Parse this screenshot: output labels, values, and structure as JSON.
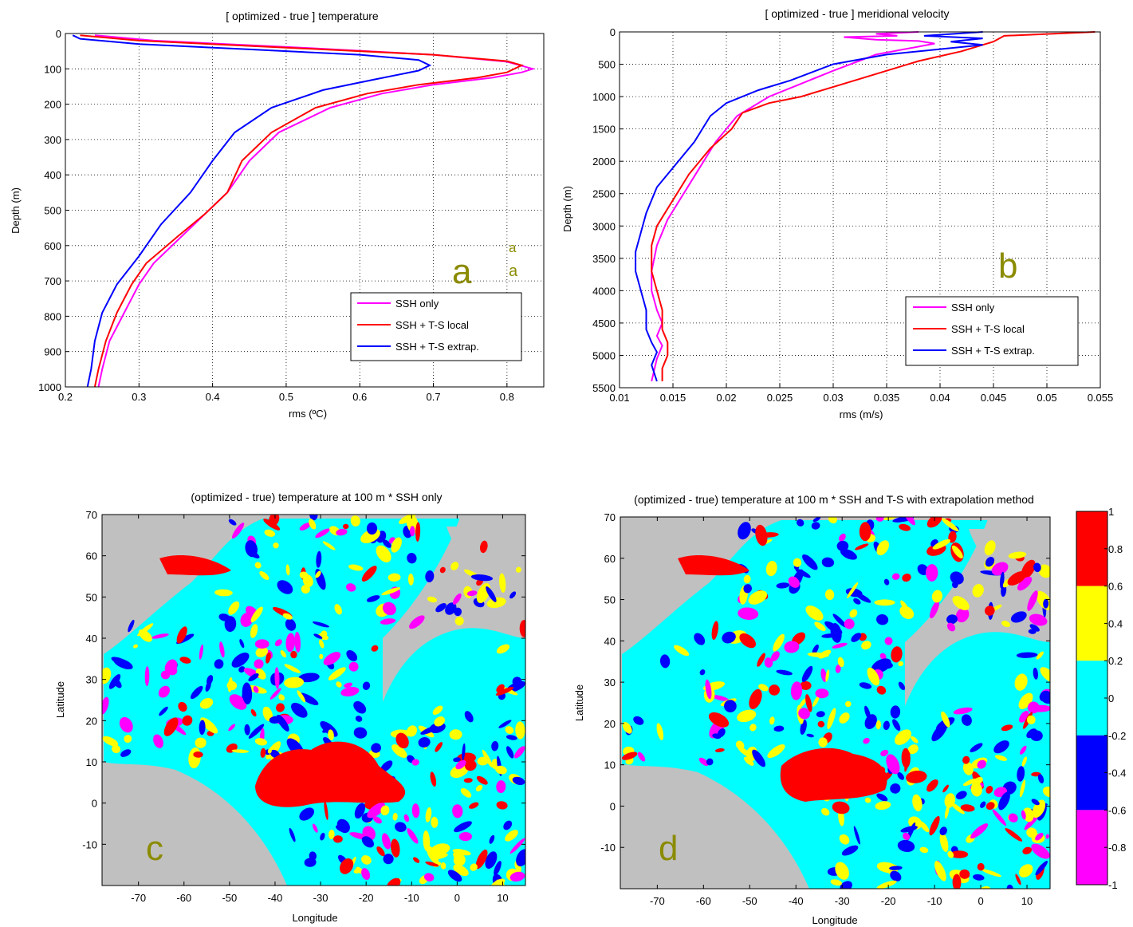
{
  "chart_data": [
    {
      "type": "line",
      "panel": "a",
      "title": "[ optimized - true ] temperature",
      "xlabel": "rms (ºC)",
      "ylabel": "Depth (m)",
      "xlim": [
        0.2,
        0.85
      ],
      "ylim": [
        1000,
        0
      ],
      "xticks": [
        "0.2",
        "0.3",
        "0.4",
        "0.5",
        "0.6",
        "0.7",
        "0.8"
      ],
      "yticks": [
        "0",
        "100",
        "200",
        "300",
        "400",
        "500",
        "600",
        "700",
        "800",
        "900",
        "1000"
      ],
      "grid": true,
      "legend_placement": "bottom-right",
      "panel_label": "a",
      "annotations": [
        "a",
        "a"
      ],
      "series": [
        {
          "name": "SSH only",
          "color": "#ff00ff",
          "x": [
            0.24,
            0.32,
            0.52,
            0.7,
            0.8,
            0.835,
            0.82,
            0.78,
            0.7,
            0.63,
            0.56,
            0.49,
            0.45,
            0.42,
            0.39,
            0.36,
            0.32,
            0.3,
            0.28,
            0.26,
            0.25,
            0.245
          ],
          "y": [
            5,
            20,
            40,
            60,
            80,
            100,
            110,
            125,
            145,
            170,
            210,
            280,
            360,
            450,
            510,
            570,
            650,
            710,
            790,
            870,
            950,
            1000
          ]
        },
        {
          "name": "SSH + T-S local",
          "color": "#ff0000",
          "x": [
            0.22,
            0.3,
            0.5,
            0.7,
            0.8,
            0.82,
            0.8,
            0.76,
            0.68,
            0.61,
            0.54,
            0.48,
            0.44,
            0.42,
            0.39,
            0.355,
            0.31,
            0.29,
            0.27,
            0.255,
            0.245,
            0.24
          ],
          "y": [
            5,
            20,
            40,
            60,
            78,
            90,
            110,
            125,
            145,
            170,
            210,
            280,
            360,
            450,
            510,
            570,
            650,
            710,
            790,
            870,
            950,
            1000
          ]
        },
        {
          "name": "SSH + T-S extrap.",
          "color": "#0000ff",
          "x": [
            0.21,
            0.22,
            0.3,
            0.45,
            0.6,
            0.68,
            0.695,
            0.68,
            0.62,
            0.55,
            0.48,
            0.43,
            0.4,
            0.37,
            0.33,
            0.3,
            0.27,
            0.25,
            0.24,
            0.235,
            0.23
          ],
          "y": [
            5,
            15,
            30,
            45,
            60,
            75,
            90,
            105,
            130,
            160,
            210,
            280,
            360,
            450,
            540,
            630,
            710,
            790,
            870,
            950,
            1000
          ]
        }
      ]
    },
    {
      "type": "line",
      "panel": "b",
      "title": "[ optimized - true ] meridional velocity",
      "xlabel": "rms (m/s)",
      "ylabel": "Depth (m)",
      "xlim": [
        0.01,
        0.055
      ],
      "ylim": [
        5500,
        0
      ],
      "xticks": [
        "0.01",
        "0.015",
        "0.02",
        "0.025",
        "0.03",
        "0.035",
        "0.04",
        "0.045",
        "0.05",
        "0.055"
      ],
      "yticks": [
        "0",
        "500",
        "1000",
        "1500",
        "2000",
        "2500",
        "3000",
        "3500",
        "4000",
        "4500",
        "5000",
        "5500"
      ],
      "grid": true,
      "legend_placement": "bottom-right",
      "panel_label": "b",
      "series": [
        {
          "name": "SSH only",
          "color": "#ff00ff",
          "x": [
            0.038,
            0.034,
            0.036,
            0.031,
            0.034,
            0.038,
            0.0395,
            0.034,
            0.03,
            0.027,
            0.024,
            0.021,
            0.019,
            0.0175,
            0.016,
            0.0145,
            0.0135,
            0.013,
            0.013,
            0.0135,
            0.014,
            0.0135,
            0.014,
            0.0135,
            0.013
          ],
          "y": [
            0,
            30,
            60,
            80,
            120,
            140,
            180,
            350,
            600,
            800,
            1000,
            1300,
            1700,
            2100,
            2500,
            2900,
            3300,
            3700,
            4000,
            4300,
            4500,
            4700,
            4850,
            5050,
            5400
          ]
        },
        {
          "name": "SSH + T-S local",
          "color": "#ff0000",
          "x": [
            0.0545,
            0.046,
            0.045,
            0.042,
            0.038,
            0.035,
            0.031,
            0.027,
            0.024,
            0.0215,
            0.0205,
            0.0185,
            0.0165,
            0.015,
            0.0135,
            0.013,
            0.013,
            0.0135,
            0.014,
            0.014,
            0.0145,
            0.0145,
            0.014,
            0.014
          ],
          "y": [
            0,
            60,
            150,
            300,
            450,
            600,
            800,
            1000,
            1100,
            1250,
            1500,
            1800,
            2200,
            2600,
            3000,
            3300,
            3700,
            4000,
            4300,
            4600,
            4800,
            5000,
            5200,
            5400
          ]
        },
        {
          "name": "SSH + T-S extrap.",
          "color": "#0000ff",
          "x": [
            0.044,
            0.0385,
            0.044,
            0.041,
            0.044,
            0.035,
            0.03,
            0.026,
            0.023,
            0.02,
            0.0185,
            0.017,
            0.0155,
            0.0135,
            0.0125,
            0.012,
            0.0115,
            0.0115,
            0.012,
            0.0125,
            0.0125,
            0.013,
            0.0135,
            0.013,
            0.0135
          ],
          "y": [
            0,
            60,
            100,
            150,
            200,
            350,
            500,
            750,
            900,
            1100,
            1300,
            1700,
            2000,
            2400,
            2800,
            3100,
            3400,
            3700,
            4000,
            4300,
            4600,
            4800,
            4950,
            5150,
            5400
          ]
        }
      ]
    },
    {
      "type": "heatmap",
      "panel": "c",
      "title": "(optimized - true) temperature at 100 m * SSH only",
      "xlabel": "Longitude",
      "ylabel": "Latitude",
      "xlim": [
        -78,
        15
      ],
      "ylim": [
        -20,
        70
      ],
      "xticks": [
        "-70",
        "-60",
        "-50",
        "-40",
        "-30",
        "-20",
        "-10",
        "0",
        "10"
      ],
      "yticks": [
        "70",
        "60",
        "50",
        "40",
        "30",
        "20",
        "10",
        "0",
        "-10"
      ],
      "panel_label": "c"
    },
    {
      "type": "heatmap",
      "panel": "d",
      "title": "(optimized - true) temperature at 100 m * SSH and T-S with extrapolation method",
      "xlabel": "Longitude",
      "ylabel": "Latitude",
      "xlim": [
        -78,
        15
      ],
      "ylim": [
        -20,
        70
      ],
      "xticks": [
        "-70",
        "-60",
        "-50",
        "-40",
        "-30",
        "-20",
        "-10",
        "0",
        "10"
      ],
      "yticks": [
        "70",
        "60",
        "50",
        "40",
        "30",
        "20",
        "10",
        "0",
        "-10"
      ],
      "panel_label": "d",
      "colorbar": {
        "range": [
          -1,
          1
        ],
        "ticks": [
          "1",
          "0.8",
          "0.6",
          "0.4",
          "0.2",
          "0",
          "-0.2",
          "-0.4",
          "-0.6",
          "-0.8",
          "-1"
        ],
        "bands": [
          {
            "from": 0.6,
            "to": 1,
            "color": "#ff0000"
          },
          {
            "from": 0.2,
            "to": 0.6,
            "color": "#ffff00"
          },
          {
            "from": -0.2,
            "to": 0.2,
            "color": "#00ffff"
          },
          {
            "from": -0.6,
            "to": -0.2,
            "color": "#0000ff"
          },
          {
            "from": -1,
            "to": -0.6,
            "color": "#ff00ff"
          }
        ]
      }
    }
  ],
  "colors": {
    "land": "#c0c0c0",
    "annotation": "#8b8b00"
  }
}
